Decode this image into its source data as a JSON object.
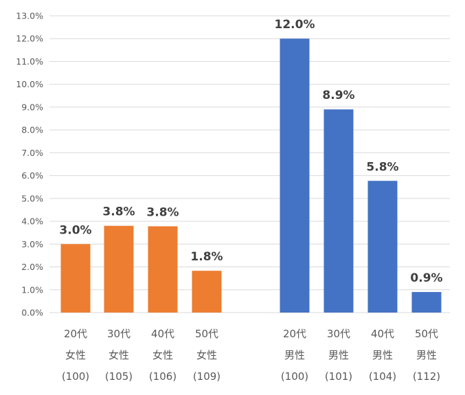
{
  "chart_data": {
    "type": "bar",
    "ylim": [
      0,
      13
    ],
    "y_ticks": [
      "0.0%",
      "1.0%",
      "2.0%",
      "3.0%",
      "4.0%",
      "5.0%",
      "6.0%",
      "7.0%",
      "8.0%",
      "9.0%",
      "10.0%",
      "11.0%",
      "12.0%",
      "13.0%"
    ],
    "grid": true,
    "categories": [
      {
        "line1": "20代",
        "line2": "女性",
        "line3": "(100)"
      },
      {
        "line1": "30代",
        "line2": "女性",
        "line3": "(105)"
      },
      {
        "line1": "40代",
        "line2": "女性",
        "line3": "(106)"
      },
      {
        "line1": "50代",
        "line2": "女性",
        "line3": "(109)"
      },
      {
        "line1": "20代",
        "line2": "男性",
        "line3": "(100)"
      },
      {
        "line1": "30代",
        "line2": "男性",
        "line3": "(101)"
      },
      {
        "line1": "40代",
        "line2": "男性",
        "line3": "(104)"
      },
      {
        "line1": "50代",
        "line2": "男性",
        "line3": "(112)"
      }
    ],
    "values": [
      3.0,
      3.8,
      3.78,
      1.83,
      12.0,
      8.9,
      5.77,
      0.9
    ],
    "data_labels": [
      "3.0%",
      "3.8%",
      "3.8%",
      "1.8%",
      "12.0%",
      "8.9%",
      "5.8%",
      "0.9%"
    ],
    "colors": [
      "#ED7D31",
      "#ED7D31",
      "#ED7D31",
      "#ED7D31",
      "#4472C4",
      "#4472C4",
      "#4472C4",
      "#4472C4"
    ]
  }
}
